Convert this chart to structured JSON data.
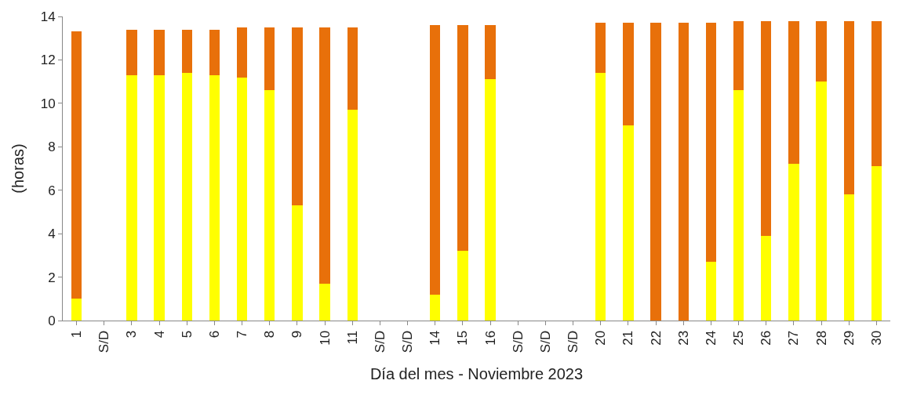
{
  "chart_data": {
    "type": "bar",
    "stacked": true,
    "xlabel": "Día del mes - Noviembre 2023",
    "ylabel": "(horas)",
    "categories": [
      "1",
      "S/D",
      "3",
      "4",
      "5",
      "6",
      "7",
      "8",
      "9",
      "10",
      "11",
      "S/D",
      "S/D",
      "14",
      "15",
      "16",
      "S/D",
      "S/D",
      "S/D",
      "20",
      "21",
      "22",
      "23",
      "24",
      "25",
      "26",
      "27",
      "28",
      "29",
      "30"
    ],
    "series": [
      {
        "color": "#ffff00",
        "values": [
          1.0,
          null,
          11.3,
          11.3,
          11.4,
          11.3,
          11.2,
          10.6,
          5.3,
          1.7,
          9.7,
          null,
          null,
          1.2,
          3.2,
          11.1,
          null,
          null,
          null,
          11.4,
          9.0,
          0,
          0,
          2.7,
          10.6,
          3.9,
          7.2,
          11.0,
          5.8,
          7.1
        ]
      },
      {
        "color": "#e8700a",
        "values": [
          12.3,
          null,
          2.1,
          2.1,
          2.0,
          2.1,
          2.3,
          2.9,
          8.2,
          11.8,
          3.8,
          null,
          null,
          12.4,
          10.4,
          2.5,
          null,
          null,
          null,
          2.3,
          4.7,
          13.7,
          13.7,
          11.0,
          3.2,
          9.9,
          6.6,
          2.8,
          8.0,
          6.7
        ]
      }
    ],
    "ylim": [
      0,
      14
    ],
    "yticks": [
      0,
      2,
      4,
      6,
      8,
      10,
      12,
      14
    ]
  }
}
